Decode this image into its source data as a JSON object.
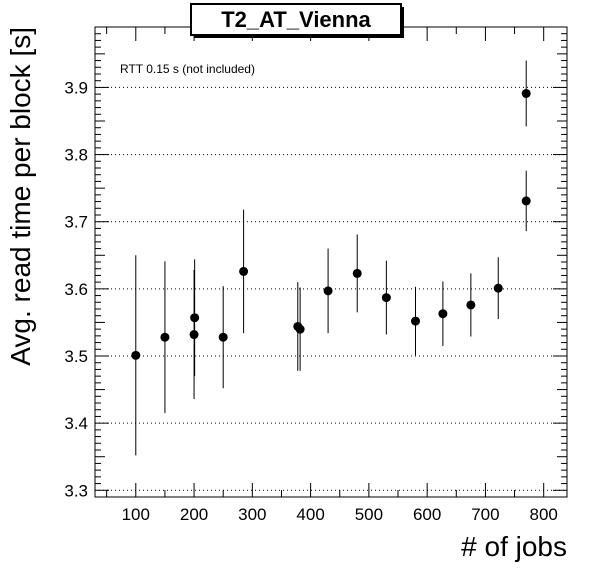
{
  "chart_data": {
    "type": "scatter",
    "title": "T2_AT_Vienna",
    "xlabel": "# of jobs",
    "ylabel": "Avg. read time per block [s]",
    "annotation": "RTT 0.15 s (not included)",
    "xlim": [
      30,
      840
    ],
    "ylim": [
      3.29,
      3.99
    ],
    "xticks": [
      100,
      200,
      300,
      400,
      500,
      600,
      700,
      800
    ],
    "yticks": [
      3.3,
      3.4,
      3.5,
      3.6,
      3.7,
      3.8,
      3.9
    ],
    "ytick_labels": [
      "3.3",
      "3.4",
      "3.5",
      "3.6",
      "3.7",
      "3.8",
      "3.9"
    ],
    "grid": "horizontal-dotted",
    "points": [
      {
        "x": 100,
        "y": 3.501,
        "err": 0.149
      },
      {
        "x": 150,
        "y": 3.528,
        "err": 0.113
      },
      {
        "x": 200,
        "y": 3.532,
        "err": 0.096
      },
      {
        "x": 201,
        "y": 3.557,
        "err": 0.087
      },
      {
        "x": 250,
        "y": 3.528,
        "err": 0.076
      },
      {
        "x": 285,
        "y": 3.626,
        "err": 0.092
      },
      {
        "x": 378,
        "y": 3.544,
        "err": 0.066
      },
      {
        "x": 382,
        "y": 3.54,
        "err": 0.062
      },
      {
        "x": 430,
        "y": 3.597,
        "err": 0.063
      },
      {
        "x": 480,
        "y": 3.623,
        "err": 0.058
      },
      {
        "x": 530,
        "y": 3.587,
        "err": 0.055
      },
      {
        "x": 580,
        "y": 3.552,
        "err": 0.051
      },
      {
        "x": 627,
        "y": 3.563,
        "err": 0.048
      },
      {
        "x": 675,
        "y": 3.576,
        "err": 0.047
      },
      {
        "x": 722,
        "y": 3.601,
        "err": 0.046
      },
      {
        "x": 770,
        "y": 3.731,
        "err": 0.045
      },
      {
        "x": 770,
        "y": 3.891,
        "err": 0.049
      }
    ]
  }
}
